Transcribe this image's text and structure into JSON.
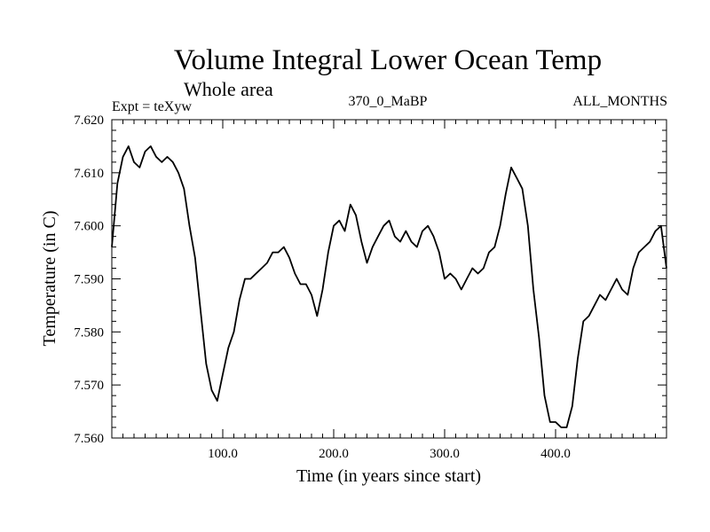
{
  "chart_data": {
    "type": "line",
    "title": "Volume Integral Lower Ocean Temp",
    "subtitle": "Whole area",
    "label_left": "Expt = teXyw",
    "label_center": "370_0_MaBP",
    "label_right": "ALL_MONTHS",
    "xlabel": "Time (in years since start)",
    "ylabel": "Temperature (in C)",
    "xlim": [
      0,
      500
    ],
    "ylim": [
      7.56,
      7.62
    ],
    "x_ticks_major": [
      100,
      200,
      300,
      400
    ],
    "x_tick_labels": [
      "100.0",
      "200.0",
      "300.0",
      "400.0"
    ],
    "y_ticks_major": [
      7.56,
      7.57,
      7.58,
      7.59,
      7.6,
      7.61,
      7.62
    ],
    "y_tick_labels": [
      "7.560",
      "7.570",
      "7.580",
      "7.590",
      "7.600",
      "7.610",
      "7.620"
    ],
    "grid": false,
    "legend": "none",
    "series": [
      {
        "color": "#000000",
        "x": [
          0,
          5,
          10,
          15,
          20,
          25,
          30,
          35,
          40,
          45,
          50,
          55,
          60,
          65,
          70,
          75,
          80,
          85,
          90,
          95,
          100,
          105,
          110,
          115,
          120,
          125,
          130,
          135,
          140,
          145,
          150,
          155,
          160,
          165,
          170,
          175,
          180,
          185,
          190,
          195,
          200,
          205,
          210,
          215,
          220,
          225,
          230,
          235,
          240,
          245,
          250,
          255,
          260,
          265,
          270,
          275,
          280,
          285,
          290,
          295,
          300,
          305,
          310,
          315,
          320,
          325,
          330,
          335,
          340,
          345,
          350,
          355,
          360,
          365,
          370,
          375,
          380,
          385,
          390,
          395,
          400,
          405,
          410,
          415,
          420,
          425,
          430,
          435,
          440,
          445,
          450,
          455,
          460,
          465,
          470,
          475,
          480,
          485,
          490,
          495,
          500
        ],
        "y": [
          7.596,
          7.608,
          7.613,
          7.615,
          7.612,
          7.611,
          7.614,
          7.615,
          7.613,
          7.612,
          7.613,
          7.612,
          7.61,
          7.607,
          7.6,
          7.594,
          7.584,
          7.574,
          7.569,
          7.567,
          7.572,
          7.577,
          7.58,
          7.586,
          7.59,
          7.59,
          7.591,
          7.592,
          7.593,
          7.595,
          7.595,
          7.596,
          7.594,
          7.591,
          7.589,
          7.589,
          7.587,
          7.583,
          7.588,
          7.595,
          7.6,
          7.601,
          7.599,
          7.604,
          7.602,
          7.597,
          7.593,
          7.596,
          7.598,
          7.6,
          7.601,
          7.598,
          7.597,
          7.599,
          7.597,
          7.596,
          7.599,
          7.6,
          7.598,
          7.595,
          7.59,
          7.591,
          7.59,
          7.588,
          7.59,
          7.592,
          7.591,
          7.592,
          7.595,
          7.596,
          7.6,
          7.606,
          7.611,
          7.609,
          7.607,
          7.6,
          7.588,
          7.579,
          7.568,
          7.563,
          7.563,
          7.562,
          7.562,
          7.566,
          7.575,
          7.582,
          7.583,
          7.585,
          7.587,
          7.586,
          7.588,
          7.59,
          7.588,
          7.587,
          7.592,
          7.595,
          7.596,
          7.597,
          7.599,
          7.6,
          7.592
        ]
      }
    ]
  }
}
